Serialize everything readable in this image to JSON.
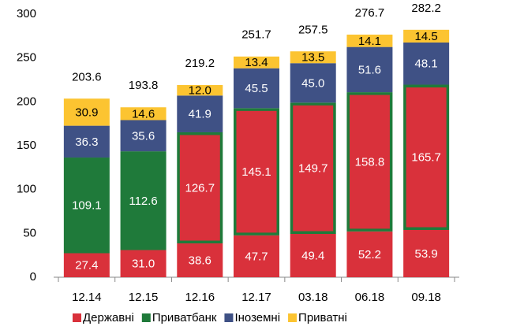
{
  "chart_data": {
    "type": "stacked_bar",
    "categories": [
      "12.14",
      "12.15",
      "12.16",
      "12.17",
      "03.18",
      "06.18",
      "09.18"
    ],
    "series": [
      {
        "name": "Державні",
        "color": "#d9313b",
        "values": [
          27.4,
          31.0,
          38.6,
          47.7,
          49.4,
          52.2,
          53.9
        ],
        "value_labels": [
          "27.4",
          "31.0",
          "38.6",
          "47.7",
          "49.4",
          "52.2",
          "53.9"
        ]
      },
      {
        "name": "Приватбанк",
        "color": "#1f7a3a",
        "values": [
          109.1,
          112.6,
          126.7,
          145.1,
          149.7,
          158.8,
          165.7
        ],
        "value_labels": [
          "109.1",
          "112.6",
          "126.7",
          "145.1",
          "149.7",
          "158.8",
          "165.7"
        ],
        "point_colors": [
          "#1f7a3a",
          "#1f7a3a",
          "#d9313b",
          "#d9313b",
          "#d9313b",
          "#d9313b",
          "#d9313b"
        ],
        "edge_color": "#1f7a3a"
      },
      {
        "name": "Іноземні",
        "color": "#3f5185",
        "values": [
          36.3,
          35.6,
          41.9,
          45.5,
          45.0,
          51.6,
          48.1
        ],
        "value_labels": [
          "36.3",
          "35.6",
          "41.9",
          "45.5",
          "45.0",
          "51.6",
          "48.1"
        ]
      },
      {
        "name": "Приватні",
        "color": "#fcc431",
        "values": [
          30.9,
          14.6,
          12.0,
          13.4,
          13.5,
          14.1,
          14.5
        ],
        "value_labels": [
          "30.9",
          "14.6",
          "12.0",
          "13.4",
          "13.5",
          "14.1",
          "14.5"
        ]
      }
    ],
    "totals": [
      203.6,
      193.8,
      219.2,
      251.7,
      257.5,
      276.7,
      282.2
    ],
    "ylim": [
      0,
      300
    ],
    "yticks": [
      0,
      50,
      100,
      150,
      200,
      250,
      300
    ],
    "grid": false,
    "legend": "bottom"
  }
}
